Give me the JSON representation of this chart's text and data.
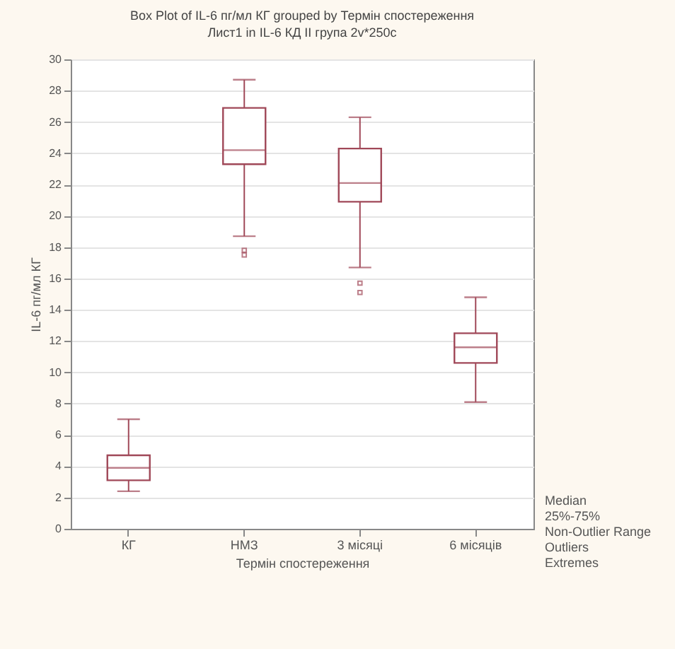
{
  "chart_data": {
    "type": "box",
    "title": "Box Plot of IL-6 пг/мл  КГ grouped by  Термін спостереження",
    "subtitle": "Лист1 in IL-6 КД II група 2v*250c",
    "xlabel": "Термін спостереження",
    "ylabel": "IL-6 пг/мл  КГ",
    "categories": [
      "КГ",
      "НМЗ",
      "3 місяці",
      "6 місяців"
    ],
    "series": [
      {
        "color": "#a04858",
        "boxes": [
          {
            "low": 2.4,
            "q1": 3.1,
            "median": 3.9,
            "q3": 4.7,
            "high": 7.0
          },
          {
            "low": 18.7,
            "q1": 23.3,
            "median": 24.2,
            "q3": 26.9,
            "high": 28.7,
            "outliers": [
              17.8,
              17.5
            ]
          },
          {
            "low": 16.7,
            "q1": 20.9,
            "median": 22.1,
            "q3": 24.3,
            "high": 26.3,
            "outliers": [
              15.7,
              15.1
            ]
          },
          {
            "low": 8.1,
            "q1": 10.6,
            "median": 11.6,
            "q3": 12.5,
            "high": 14.8
          }
        ]
      }
    ],
    "ylim": [
      0,
      30
    ],
    "yticks": [
      0,
      2,
      4,
      6,
      8,
      10,
      12,
      14,
      16,
      18,
      20,
      22,
      24,
      26,
      28,
      30
    ],
    "grid": "y",
    "annotations": [
      "Median",
      "25%-75%",
      "Non-Outlier Range",
      "Outliers",
      "Extremes"
    ]
  }
}
